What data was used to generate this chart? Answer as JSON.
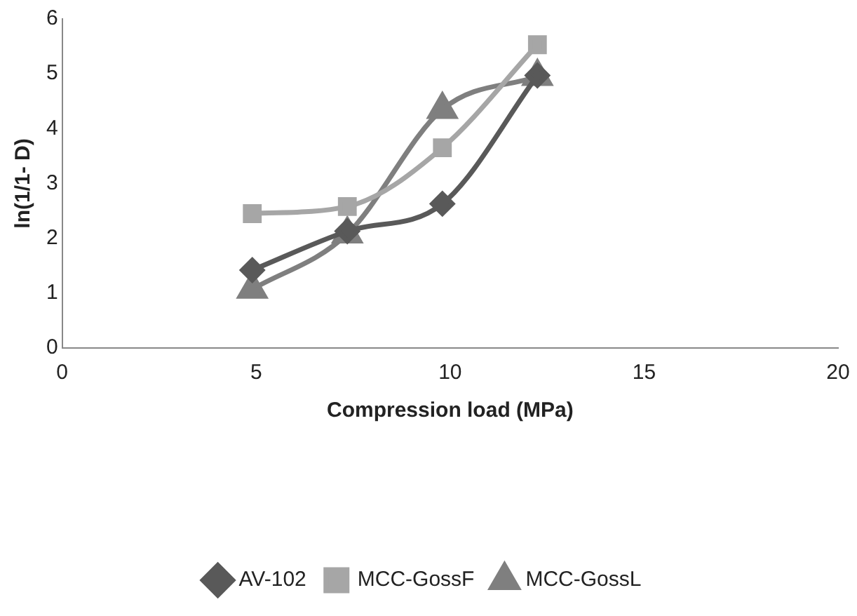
{
  "chart_data": {
    "type": "line",
    "xlabel": "Compression load (MPa)",
    "ylabel": "ln(1/1- D)",
    "x": [
      4.9,
      7.35,
      9.8,
      12.25
    ],
    "series": [
      {
        "name": "AV-102",
        "color": "#595959",
        "values": [
          1.42,
          2.13,
          2.63,
          4.97
        ],
        "marker": "diamond"
      },
      {
        "name": "MCC-GossF",
        "color": "#a6a6a6",
        "values": [
          2.45,
          2.58,
          3.65,
          5.53
        ],
        "marker": "square"
      },
      {
        "name": "MCC-GossL",
        "color": "#7f7f7f",
        "values": [
          1.07,
          2.08,
          4.35,
          4.95
        ],
        "marker": "triangle"
      }
    ],
    "xlim": [
      0,
      20
    ],
    "xticks": [
      0,
      5,
      10,
      15,
      20
    ],
    "ylim": [
      0,
      6
    ],
    "yticks": [
      0,
      1,
      2,
      3,
      4,
      5,
      6
    ],
    "grid": false,
    "legend": "bottom",
    "line_style": "solid"
  }
}
